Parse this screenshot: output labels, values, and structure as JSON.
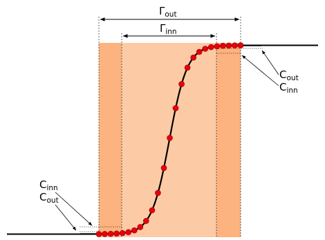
{
  "labels": {
    "gamma_out": {
      "base": "Γ",
      "sub": "out"
    },
    "gamma_inn": {
      "base": "Γ",
      "sub": "inn"
    },
    "c_out_right": {
      "base": "C",
      "sub": "out"
    },
    "c_inn_right": {
      "base": "C",
      "sub": "inn"
    },
    "c_inn_left": {
      "base": "C",
      "sub": "inn"
    },
    "c_out_left": {
      "base": "C",
      "sub": "out"
    }
  },
  "colors": {
    "outer_band": "#fdb37f",
    "inner_band": "#fdcaa6",
    "curve": "#000000",
    "points": "#e8000b",
    "point_stroke": "#8a0000"
  },
  "point_count": 25
}
